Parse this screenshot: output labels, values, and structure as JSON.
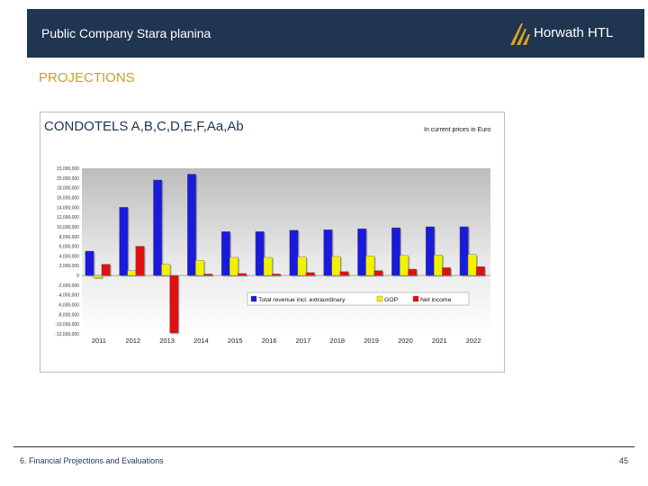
{
  "header": {
    "company": "Public Company Stara planina",
    "logo_text": "Horwath HTL"
  },
  "section_title": "PROJECTIONS",
  "footer": {
    "text": "6. Financial Projections and Evaluations",
    "page_number": "45"
  },
  "colors": {
    "header_bg": "#1f3550",
    "accent": "#c9a02a",
    "series_blue": "#1a1adb",
    "series_yellow": "#f2f200",
    "series_red": "#e01010",
    "plot_bg": "#cfcfcf"
  },
  "chart_data": {
    "type": "bar",
    "title": "CONDOTELS A,B,C,D,E,F,Aa,Ab",
    "subtitle": "In current prices in Euro",
    "categories": [
      "2011",
      "2012",
      "2013",
      "2014",
      "2015",
      "2016",
      "2017",
      "2018",
      "2019",
      "2020",
      "2021",
      "2022"
    ],
    "y_ticks": [
      "22,000,000",
      "20,000,000",
      "18,000,000",
      "16,000,000",
      "14,000,000",
      "12,000,000",
      "10,000,000",
      "8,000,000",
      "6,000,000",
      "4,000,000",
      "2,000,000",
      "0",
      "-2,000,000",
      "-4,000,000",
      "-6,000,000",
      "-8,000,000",
      "-10,000,000",
      "-12,000,000"
    ],
    "ylim": [
      -12000000,
      22000000
    ],
    "series": [
      {
        "name": "Total revenue incl. extraordinary",
        "color": "#1a1adb",
        "values": [
          5000000,
          14000000,
          19600000,
          20800000,
          9000000,
          9000000,
          9300000,
          9400000,
          9600000,
          9800000,
          10000000,
          10000000
        ]
      },
      {
        "name": "GOP",
        "color": "#f2f200",
        "values": [
          -500000,
          1000000,
          2300000,
          3100000,
          3700000,
          3700000,
          3800000,
          3900000,
          4000000,
          4100000,
          4200000,
          4300000
        ]
      },
      {
        "name": "Net income",
        "color": "#e01010",
        "values": [
          2300000,
          6000000,
          -11800000,
          300000,
          400000,
          300000,
          600000,
          800000,
          1000000,
          1300000,
          1600000,
          1800000
        ]
      }
    ],
    "legend_position": "lower-right inside plot",
    "grid": false
  }
}
